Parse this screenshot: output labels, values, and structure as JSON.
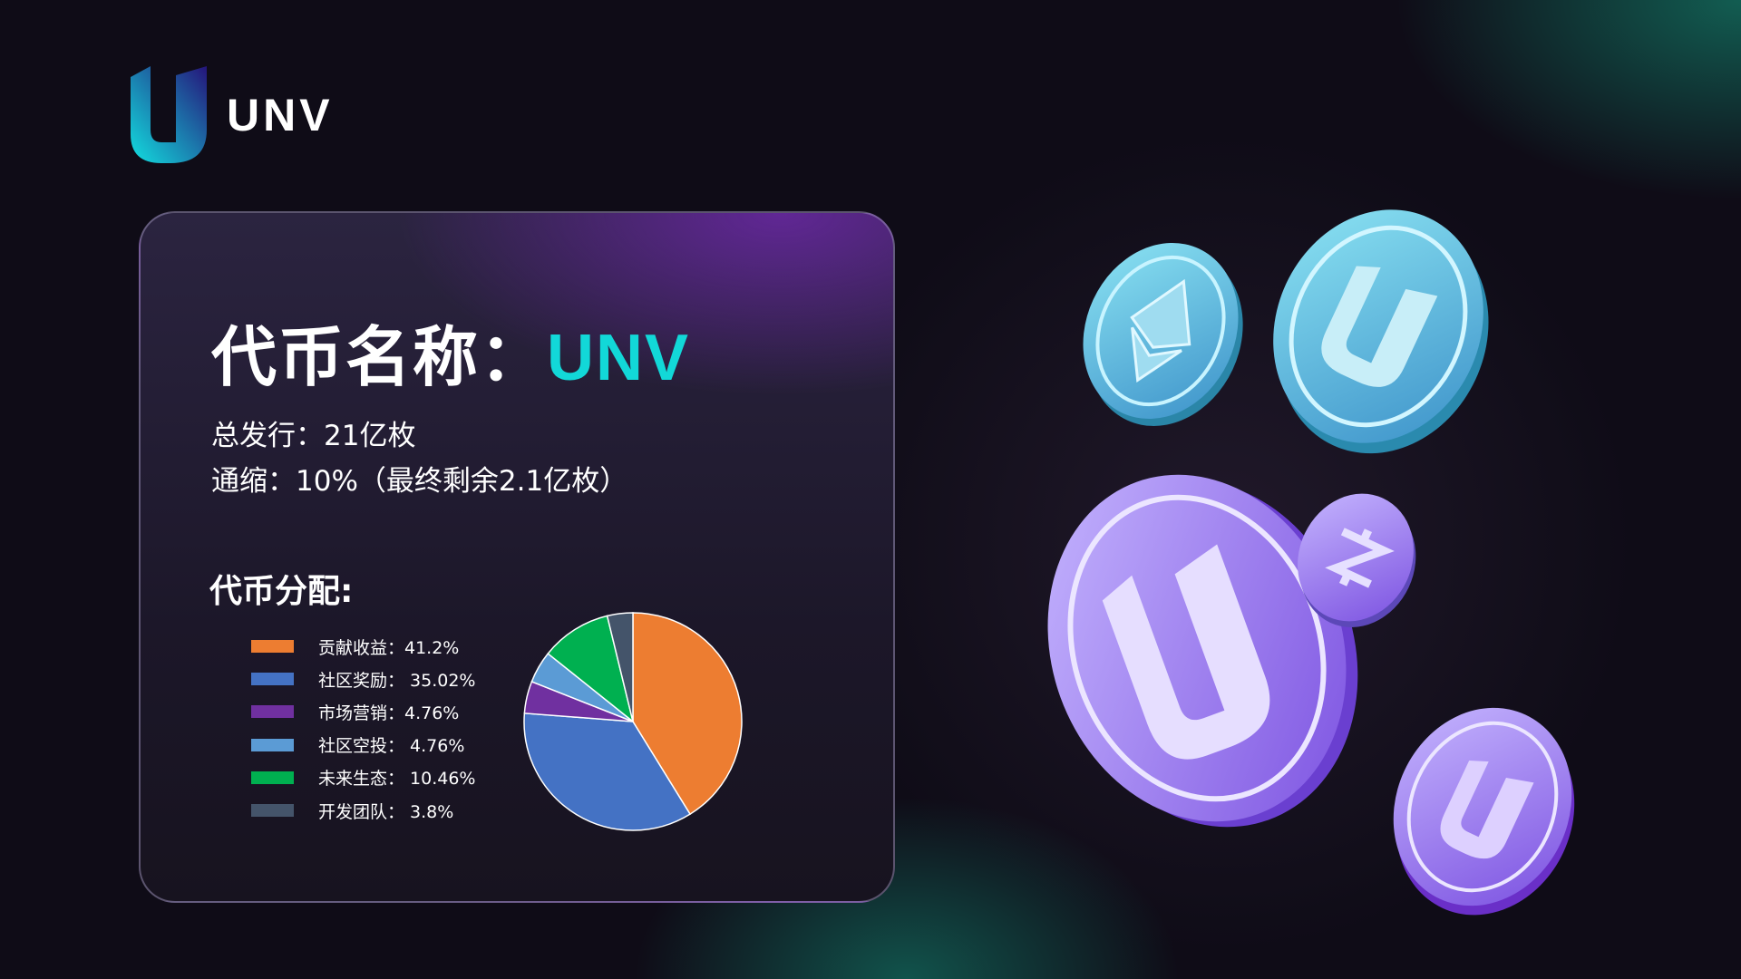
{
  "brand": {
    "name": "UNV",
    "logo_colors": [
      "#12d8d8",
      "#2a1a7a"
    ]
  },
  "card": {
    "title_label": "代币名称：",
    "title_value": "UNV",
    "total_supply": "总发行：21亿枚",
    "deflation": "通缩：10%（最终剩余2.1亿枚）",
    "distribution_heading": "代币分配:"
  },
  "legend": [
    {
      "label": "贡献收益：41.2%",
      "color": "#ed7d31"
    },
    {
      "label": "社区奖励： 35.02%",
      "color": "#4472c4"
    },
    {
      "label": "市场营销：4.76%",
      "color": "#7030a0"
    },
    {
      "label": "社区空投： 4.76%",
      "color": "#5b9bd5"
    },
    {
      "label": "未来生态： 10.46%",
      "color": "#00b050"
    },
    {
      "label": "开发团队： 3.8%",
      "color": "#44546a"
    }
  ],
  "chart_data": {
    "type": "pie",
    "categories": [
      "贡献收益",
      "社区奖励",
      "市场营销",
      "社区空投",
      "未来生态",
      "开发团队"
    ],
    "values": [
      41.2,
      35.02,
      4.76,
      4.76,
      10.46,
      3.8
    ],
    "colors": [
      "#ed7d31",
      "#4472c4",
      "#7030a0",
      "#5b9bd5",
      "#00b050",
      "#44546a"
    ],
    "start": "top",
    "direction": "clockwise",
    "legend_position": "left"
  },
  "coins": [
    {
      "icon": "ethereum-icon",
      "color": "#5ec6e0"
    },
    {
      "icon": "unv-u-icon",
      "color": "#5cc8e2"
    },
    {
      "icon": "unv-u-icon",
      "color": "#9a7ef0"
    },
    {
      "icon": "zcash-icon",
      "color": "#8e7ae6"
    },
    {
      "icon": "unv-u-icon",
      "color": "#a36ef0"
    }
  ]
}
